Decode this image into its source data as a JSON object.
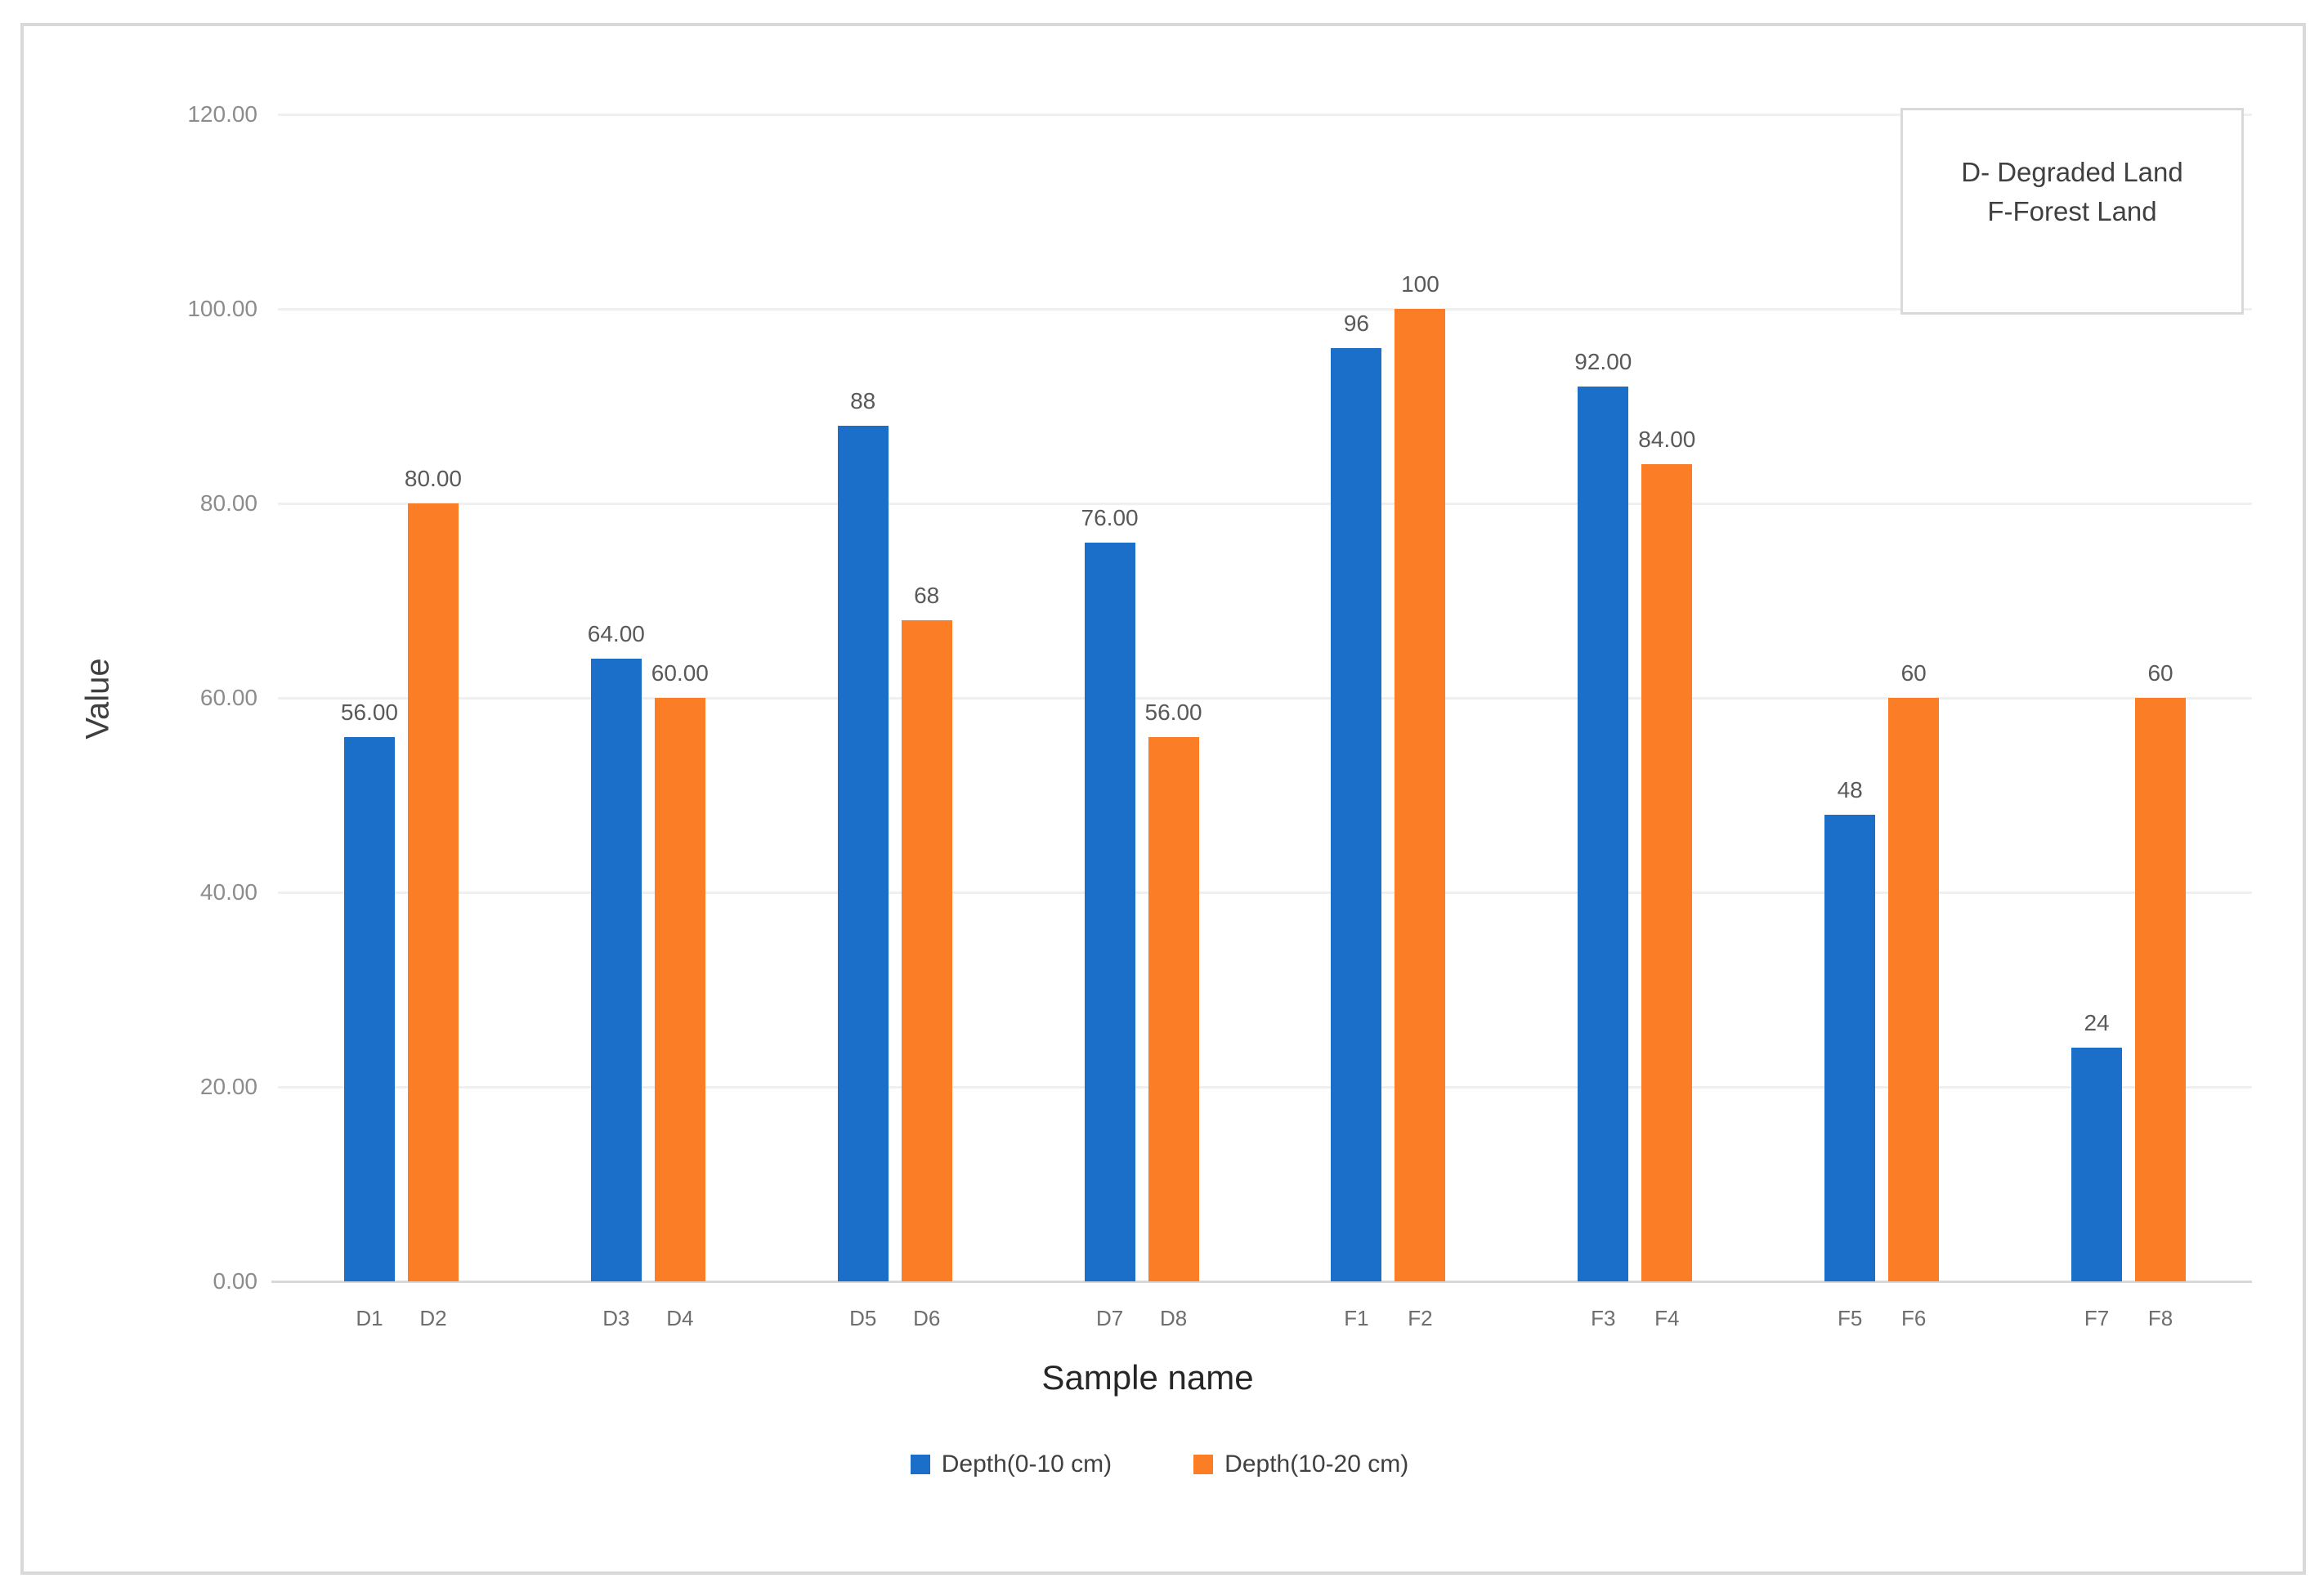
{
  "chart_data": {
    "type": "bar",
    "title": "",
    "xlabel": "Sample name",
    "ylabel": "Value",
    "ylim": [
      0,
      120
    ],
    "ytick_step": 20,
    "ytick_labels": [
      "0.00",
      "20.00",
      "40.00",
      "60.00",
      "80.00",
      "100.00",
      "120.00"
    ],
    "grid": true,
    "legend_position": "bottom-center",
    "categories": [
      "D1 D2",
      "D3 D4",
      "D5 D6",
      "D7 D8",
      "F1 F2",
      "F3 F4",
      "F5 F6",
      "F7 F8"
    ],
    "series": [
      {
        "name": "Depth(0-10 cm)",
        "color": "#1B6FC9",
        "samples": [
          "D1",
          "D3",
          "D5",
          "D7",
          "F1",
          "F3",
          "F5",
          "F7"
        ],
        "values": [
          56,
          64,
          88,
          76,
          96,
          92,
          48,
          24
        ],
        "value_labels": [
          "56.00",
          "64.00",
          "88",
          "76.00",
          "96",
          "92.00",
          "48",
          "24"
        ]
      },
      {
        "name": "Depth(10-20 cm)",
        "color": "#FB7D25",
        "samples": [
          "D2",
          "D4",
          "D6",
          "D8",
          "F2",
          "F4",
          "F6",
          "F8"
        ],
        "values": [
          80,
          60,
          68,
          56,
          100,
          84,
          60,
          60
        ],
        "value_labels": [
          "80.00",
          "60.00",
          "68",
          "56.00",
          "100",
          "84.00",
          "60",
          "60"
        ]
      }
    ]
  },
  "annotation": {
    "line1": "D- Degraded Land",
    "line2": "F-Forest Land"
  },
  "colors": {
    "series_blue": "#1B6FC9",
    "series_orange": "#FB7D25",
    "gridline": "#EFEFEF",
    "axis_line": "#D8D8D8",
    "border": "#D9D9D9",
    "tick_text": "#8C8C8C",
    "value_label_text": "#595959",
    "axis_title_text": "#3F3F3F"
  }
}
